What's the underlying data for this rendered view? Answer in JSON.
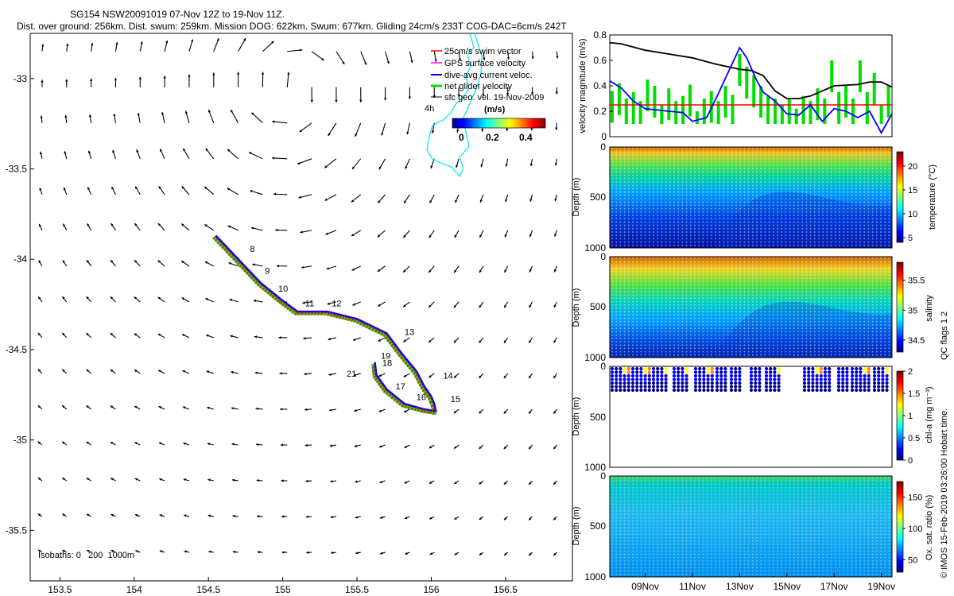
{
  "title": {
    "line1": "SG154 NSW20091019 07-Nov 12Z to 19-Nov 11Z.",
    "line2": "Dist. over ground: 256km. Dist. swum: 259km. Mission DOG: 622km. Swum: 677km. Gliding 24cm/s 233T COG-DAC=6cm/s 242T"
  },
  "colors": {
    "swim_vector": "#ff0000",
    "gps_velocity": "#ff00ff",
    "dive_avg_current": "#0000ff",
    "net_glider": "#00dd00",
    "geo_vel": "#000000",
    "isobath": "#00e5ee",
    "reference_line": "#ff0000"
  },
  "chart_data": [
    {
      "id": "map",
      "type": "scatter",
      "title": "",
      "xlabel": "",
      "ylabel": "",
      "xlim": [
        153.3,
        156.95
      ],
      "ylim": [
        -35.78,
        -32.75
      ],
      "xticks": [
        153.5,
        154,
        154.5,
        155,
        155.5,
        156,
        156.5
      ],
      "xtick_labels": [
        "153.5",
        "154",
        "154.5",
        "155",
        "155.5",
        "156",
        "156.5"
      ],
      "yticks": [
        -33,
        -33.5,
        -34,
        -34.5,
        -35,
        -35.5
      ],
      "ytick_labels": [
        "-33",
        "-33.5",
        "-34",
        "-34.5",
        "-35",
        "-35.5"
      ],
      "legend": {
        "position": "top-right",
        "entries": [
          "25cm/s swim vector",
          "GPS surface velocity",
          "dive-avg current veloc.",
          "net glider velocity",
          "sfc geo. vel. 19-Nov-2009"
        ],
        "colorbar_title": "(m/s)",
        "colorbar_ticks": [
          "0",
          "0.2",
          "0.4"
        ]
      },
      "isobath_note": "Isobaths: 0   200  1000m",
      "isobath_label": "4h",
      "track_lon": [
        154.55,
        154.7,
        154.85,
        155.0,
        155.1,
        155.3,
        155.5,
        155.7,
        155.8,
        155.9,
        155.95,
        156.0,
        156.02,
        156.03,
        155.95,
        155.82,
        155.7,
        155.63,
        155.62
      ],
      "track_lat": [
        -33.87,
        -34.0,
        -34.13,
        -34.23,
        -34.29,
        -34.29,
        -34.33,
        -34.41,
        -34.52,
        -34.62,
        -34.7,
        -34.76,
        -34.8,
        -34.84,
        -34.83,
        -34.8,
        -34.72,
        -34.64,
        -34.57
      ],
      "day_labels": [
        {
          "text": "8",
          "lon": 154.78,
          "lat": -33.96
        },
        {
          "text": "9",
          "lon": 154.88,
          "lat": -34.08
        },
        {
          "text": "10",
          "lon": 154.97,
          "lat": -34.18
        },
        {
          "text": "11",
          "lon": 155.15,
          "lat": -34.26
        },
        {
          "text": "12",
          "lon": 155.33,
          "lat": -34.26
        },
        {
          "text": "13",
          "lon": 155.82,
          "lat": -34.42
        },
        {
          "text": "14",
          "lon": 156.08,
          "lat": -34.66
        },
        {
          "text": "15",
          "lon": 156.13,
          "lat": -34.79
        },
        {
          "text": "16",
          "lon": 155.9,
          "lat": -34.78
        },
        {
          "text": "17",
          "lon": 155.76,
          "lat": -34.72
        },
        {
          "text": "18",
          "lon": 155.67,
          "lat": -34.59
        },
        {
          "text": "19",
          "lon": 155.66,
          "lat": -34.55
        },
        {
          "text": "21",
          "lon": 155.43,
          "lat": -34.65
        }
      ]
    },
    {
      "id": "velocity",
      "type": "line",
      "title": "",
      "xlabel": "",
      "ylabel": "velocity magnitude (m/s)",
      "xlim": [
        7.5,
        19.45
      ],
      "ylim": [
        0,
        0.8
      ],
      "yticks": [
        0,
        0.2,
        0.4,
        0.6,
        0.8
      ],
      "ytick_labels": [
        "0",
        "0.2",
        "0.4",
        "0.6",
        "0.8"
      ],
      "reference_value": 0.25,
      "series": [
        {
          "name": "sfc geo. vel.",
          "color": "#000000",
          "x": [
            7.5,
            8.0,
            9.0,
            10.0,
            11.0,
            12.0,
            13.0,
            13.5,
            14.0,
            14.5,
            15.0,
            15.5,
            16.0,
            17.0,
            18.0,
            18.5,
            19.0,
            19.45
          ],
          "y": [
            0.74,
            0.73,
            0.68,
            0.65,
            0.62,
            0.57,
            0.53,
            0.52,
            0.48,
            0.36,
            0.3,
            0.3,
            0.32,
            0.4,
            0.41,
            0.43,
            0.43,
            0.39
          ]
        },
        {
          "name": "dive-avg current veloc.",
          "color": "#0000ff",
          "x": [
            7.5,
            8.0,
            8.5,
            9.0,
            10.0,
            10.6,
            11.0,
            11.6,
            12.0,
            12.5,
            13.0,
            13.3,
            13.7,
            14.0,
            14.5,
            15.0,
            15.5,
            16.0,
            16.5,
            17.0,
            17.5,
            18.0,
            18.5,
            19.0,
            19.45
          ],
          "y": [
            0.44,
            0.38,
            0.28,
            0.22,
            0.2,
            0.19,
            0.12,
            0.15,
            0.3,
            0.5,
            0.7,
            0.62,
            0.45,
            0.35,
            0.28,
            0.18,
            0.17,
            0.25,
            0.12,
            0.22,
            0.2,
            0.15,
            0.2,
            0.03,
            0.18
          ]
        },
        {
          "name": "net glider velocity",
          "color": "#00dd00",
          "x": [
            7.6,
            7.9,
            8.2,
            8.5,
            8.8,
            9.1,
            9.4,
            9.7,
            10.0,
            10.3,
            10.6,
            10.9,
            11.2,
            11.5,
            11.8,
            12.1,
            12.4,
            12.7,
            13.0,
            13.3,
            13.6,
            13.9,
            14.2,
            14.5,
            14.8,
            15.1,
            15.4,
            15.7,
            16.0,
            16.3,
            16.6,
            16.9,
            17.2,
            17.5,
            17.8,
            18.1,
            18.4,
            18.7,
            19.0,
            19.3
          ],
          "y": [
            0.36,
            0.42,
            0.3,
            0.35,
            0.28,
            0.45,
            0.4,
            0.25,
            0.38,
            0.28,
            0.32,
            0.41,
            0.2,
            0.3,
            0.36,
            0.28,
            0.4,
            0.33,
            0.65,
            0.55,
            0.48,
            0.4,
            0.32,
            0.3,
            0.25,
            0.3,
            0.22,
            0.32,
            0.28,
            0.38,
            0.3,
            0.6,
            0.35,
            0.4,
            0.3,
            0.6,
            0.35,
            0.5,
            0.25,
            0.4
          ]
        }
      ]
    },
    {
      "id": "temperature",
      "type": "heatmap",
      "ylabel": "Depth (m)",
      "ylim": [
        1000,
        0
      ],
      "yticks": [
        "0",
        "500",
        "1000"
      ],
      "colorbar_label": "temperature (°C)",
      "colorbar_range": [
        4,
        23
      ],
      "colorbar_ticks": [
        "5",
        "10",
        "15",
        "20"
      ]
    },
    {
      "id": "salinity",
      "type": "heatmap",
      "ylabel": "Depth (m)",
      "ylim": [
        1000,
        0
      ],
      "yticks": [
        "0",
        "500",
        "1000"
      ],
      "colorbar_label": "salinity",
      "colorbar_range": [
        34.3,
        35.8
      ],
      "colorbar_ticks": [
        "34.5",
        "35",
        "35.5"
      ],
      "qc_note": "QC flags 1 2"
    },
    {
      "id": "chla",
      "type": "heatmap",
      "ylabel": "Depth (m)",
      "ylim": [
        1000,
        0
      ],
      "yticks": [
        "0",
        "500",
        "1000"
      ],
      "colorbar_label": "chl-a (mg m⁻³)",
      "colorbar_range": [
        0,
        2
      ],
      "colorbar_ticks": [
        "0",
        "0.5",
        "1",
        "1.5",
        "2"
      ]
    },
    {
      "id": "oxygen",
      "type": "heatmap",
      "ylabel": "Depth (m)",
      "ylim": [
        1000,
        0
      ],
      "yticks": [
        "0",
        "500",
        "1000"
      ],
      "colorbar_label": "Ox. sat. ratio (%)",
      "colorbar_range": [
        30,
        175
      ],
      "colorbar_ticks": [
        "50",
        "100",
        "150"
      ],
      "xtick_labels": [
        "09Nov",
        "11Nov",
        "13Nov",
        "15Nov",
        "17Nov",
        "19Nov"
      ],
      "xtick_days": [
        9,
        11,
        13,
        15,
        17,
        19
      ]
    }
  ],
  "credit": "© IMOS 15-Feb-2019 03:26:00 Hobart time."
}
